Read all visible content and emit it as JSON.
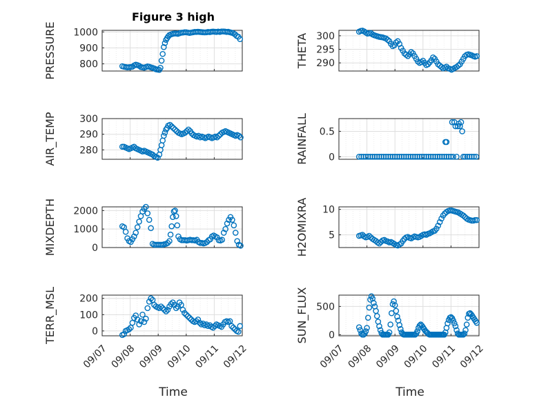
{
  "figure": {
    "title": "Figure 3 high",
    "xlabel": "Time"
  },
  "colors": {
    "marker": "#0072bd",
    "axis": "#262626",
    "grid": "#dedede"
  },
  "chart_data": [
    {
      "type": "scatter",
      "id": "pressure",
      "ylabel": "PRESSURE",
      "xlim": [
        0,
        5
      ],
      "ylim": [
        755,
        1010
      ],
      "yticks": [
        800,
        900,
        1000
      ],
      "xticklabels": [
        "09/07",
        "09/08",
        "09/09",
        "09/10",
        "09/11",
        "09/12"
      ],
      "grid": true,
      "x": [
        0.72,
        0.78,
        0.84,
        0.9,
        0.96,
        1.02,
        1.08,
        1.14,
        1.2,
        1.26,
        1.32,
        1.38,
        1.44,
        1.5,
        1.56,
        1.62,
        1.68,
        1.74,
        1.8,
        1.86,
        1.92,
        1.98,
        2.04,
        2.08,
        2.12,
        2.16,
        2.2,
        2.24,
        2.28,
        2.32,
        2.36,
        2.4,
        2.46,
        2.52,
        2.58,
        2.64,
        2.7,
        2.76,
        2.82,
        2.88,
        2.94,
        3.0,
        3.06,
        3.12,
        3.18,
        3.24,
        3.3,
        3.36,
        3.42,
        3.48,
        3.54,
        3.6,
        3.66,
        3.72,
        3.78,
        3.84,
        3.9,
        3.96,
        4.02,
        4.08,
        4.14,
        4.2,
        4.26,
        4.32,
        4.38,
        4.44,
        4.5,
        4.56,
        4.62,
        4.68,
        4.74,
        4.8,
        4.86,
        4.92
      ],
      "y": [
        785,
        782,
        780,
        778,
        779,
        780,
        782,
        790,
        795,
        792,
        788,
        780,
        778,
        776,
        780,
        784,
        782,
        778,
        775,
        771,
        766,
        764,
        762,
        775,
        820,
        862,
        905,
        930,
        950,
        962,
        972,
        980,
        985,
        988,
        990,
        990,
        988,
        992,
        995,
        996,
        998,
        998,
        996,
        994,
        996,
        998,
        1000,
        1000,
        1001,
        1000,
        999,
        998,
        997,
        998,
        1000,
        999,
        1001,
        1002,
        1001,
        1000,
        1002,
        1000,
        1003,
        1003,
        1002,
        1000,
        1001,
        998,
        995,
        992,
        985,
        975,
        970,
        955
      ]
    },
    {
      "type": "scatter",
      "id": "theta",
      "ylabel": "THETA",
      "xlim": [
        0,
        5
      ],
      "ylim": [
        287,
        302
      ],
      "yticks": [
        290,
        295,
        300
      ],
      "xticklabels": [
        "09/07",
        "09/08",
        "09/09",
        "09/10",
        "09/11",
        "09/12"
      ],
      "grid": true,
      "x": [
        0.72,
        0.78,
        0.84,
        0.9,
        0.96,
        1.02,
        1.08,
        1.14,
        1.2,
        1.26,
        1.32,
        1.38,
        1.44,
        1.5,
        1.56,
        1.62,
        1.68,
        1.74,
        1.8,
        1.86,
        1.92,
        1.98,
        2.04,
        2.1,
        2.16,
        2.22,
        2.28,
        2.34,
        2.4,
        2.46,
        2.52,
        2.58,
        2.64,
        2.7,
        2.76,
        2.82,
        2.88,
        2.94,
        3.0,
        3.06,
        3.12,
        3.18,
        3.24,
        3.3,
        3.36,
        3.42,
        3.48,
        3.54,
        3.6,
        3.66,
        3.72,
        3.78,
        3.84,
        3.9,
        3.96,
        4.02,
        4.08,
        4.14,
        4.2,
        4.26,
        4.32,
        4.38,
        4.44,
        4.5,
        4.56,
        4.62,
        4.68,
        4.74,
        4.8,
        4.86,
        4.92
      ],
      "y": [
        301.5,
        301.8,
        301.9,
        301.6,
        301.2,
        300.8,
        300.9,
        301.0,
        300.5,
        300.2,
        300.0,
        299.8,
        299.6,
        299.5,
        299.4,
        299.2,
        299.0,
        298.5,
        298.0,
        297.0,
        296.2,
        296.5,
        297.5,
        298.0,
        297.0,
        295.5,
        294.5,
        293.5,
        293.0,
        292.5,
        293.2,
        294.0,
        293.5,
        292.5,
        291.5,
        290.5,
        290.0,
        290.3,
        290.8,
        290.0,
        289.2,
        289.5,
        290.2,
        291.0,
        292.0,
        291.5,
        290.5,
        289.5,
        289.0,
        288.5,
        288.0,
        288.3,
        288.6,
        288.0,
        287.8,
        287.5,
        287.8,
        288.2,
        288.5,
        289.0,
        289.5,
        290.5,
        291.5,
        292.5,
        293.0,
        293.2,
        293.0,
        292.8,
        292.5,
        292.3,
        292.5
      ]
    },
    {
      "type": "scatter",
      "id": "air_temp",
      "ylabel": "AIR_TEMP",
      "xlim": [
        0,
        5
      ],
      "ylim": [
        274,
        300
      ],
      "yticks": [
        280,
        290,
        300
      ],
      "xticklabels": [
        "09/07",
        "09/08",
        "09/09",
        "09/10",
        "09/11",
        "09/12"
      ],
      "grid": true,
      "x": [
        0.72,
        0.78,
        0.84,
        0.9,
        0.96,
        1.02,
        1.08,
        1.14,
        1.2,
        1.26,
        1.32,
        1.38,
        1.44,
        1.5,
        1.56,
        1.62,
        1.68,
        1.74,
        1.8,
        1.86,
        1.92,
        1.98,
        2.04,
        2.08,
        2.12,
        2.16,
        2.2,
        2.24,
        2.28,
        2.32,
        2.36,
        2.42,
        2.48,
        2.54,
        2.6,
        2.66,
        2.72,
        2.78,
        2.84,
        2.9,
        2.96,
        3.02,
        3.08,
        3.14,
        3.2,
        3.26,
        3.32,
        3.38,
        3.44,
        3.5,
        3.56,
        3.62,
        3.68,
        3.74,
        3.8,
        3.86,
        3.92,
        3.98,
        4.04,
        4.1,
        4.16,
        4.22,
        4.28,
        4.34,
        4.4,
        4.46,
        4.52,
        4.58,
        4.64,
        4.7,
        4.76,
        4.82,
        4.88,
        4.94
      ],
      "y": [
        282,
        282,
        281.5,
        281,
        280.5,
        281,
        281.5,
        282,
        281,
        280.5,
        280,
        279.5,
        279,
        279.5,
        279,
        278.5,
        278,
        277.5,
        277,
        276,
        275.5,
        275,
        277,
        280,
        283,
        286,
        289,
        291,
        293,
        294,
        295.5,
        296,
        295,
        294,
        293,
        292,
        291,
        290.5,
        290,
        290.5,
        291,
        292,
        293,
        292,
        290.5,
        289.5,
        289,
        288.5,
        289,
        288,
        288.5,
        288,
        287.5,
        288,
        288.5,
        288,
        287.5,
        288,
        288.5,
        288,
        289,
        290,
        291,
        291.5,
        292,
        291.5,
        291,
        290.5,
        290,
        289.5,
        289,
        289.5,
        289,
        288
      ]
    },
    {
      "type": "scatter",
      "id": "rainfall",
      "ylabel": "RAINFALL",
      "xlim": [
        0,
        5
      ],
      "ylim": [
        -0.05,
        0.75
      ],
      "yticks": [
        0,
        0.5
      ],
      "xticklabels": [
        "09/07",
        "09/08",
        "09/09",
        "09/10",
        "09/11",
        "09/12"
      ],
      "grid": true,
      "x": [
        0.72,
        0.8,
        0.88,
        0.96,
        1.04,
        1.12,
        1.2,
        1.28,
        1.36,
        1.44,
        1.52,
        1.6,
        1.68,
        1.76,
        1.84,
        1.92,
        2.0,
        2.08,
        2.16,
        2.24,
        2.32,
        2.4,
        2.48,
        2.56,
        2.64,
        2.72,
        2.8,
        2.88,
        2.96,
        3.04,
        3.12,
        3.2,
        3.28,
        3.36,
        3.44,
        3.52,
        3.6,
        3.68,
        3.76,
        3.84,
        3.92,
        4.0,
        4.04,
        4.08,
        4.12,
        4.16,
        4.2,
        4.24,
        4.28,
        4.32,
        4.36,
        4.4,
        4.44,
        4.5,
        4.58,
        4.66,
        4.74,
        4.82,
        4.9,
        3.8,
        3.84
      ],
      "y": [
        0,
        0,
        0,
        0,
        0,
        0,
        0,
        0,
        0,
        0,
        0,
        0,
        0,
        0,
        0,
        0,
        0,
        0,
        0,
        0,
        0,
        0,
        0,
        0,
        0,
        0,
        0,
        0,
        0,
        0,
        0,
        0,
        0,
        0,
        0,
        0,
        0,
        0,
        0,
        0,
        0,
        0,
        0.68,
        0,
        0.68,
        0.6,
        0,
        0.6,
        0.65,
        0.6,
        0.68,
        0.5,
        0,
        0,
        0,
        0,
        0,
        0,
        0,
        0.29,
        0.29
      ]
    },
    {
      "type": "scatter",
      "id": "mixdepth",
      "ylabel": "MIXDEPTH",
      "xlim": [
        0,
        5
      ],
      "ylim": [
        0,
        2200
      ],
      "yticks": [
        0,
        1000,
        2000
      ],
      "xticklabels": [
        "09/07",
        "09/08",
        "09/09",
        "09/10",
        "09/11",
        "09/12"
      ],
      "grid": true,
      "x": [
        0.72,
        0.78,
        0.84,
        0.9,
        0.96,
        1.02,
        1.08,
        1.14,
        1.2,
        1.26,
        1.32,
        1.38,
        1.44,
        1.5,
        1.56,
        1.62,
        1.68,
        1.74,
        1.8,
        1.86,
        1.92,
        1.98,
        2.04,
        2.1,
        2.16,
        2.22,
        2.28,
        2.34,
        2.4,
        2.44,
        2.48,
        2.52,
        2.56,
        2.6,
        2.64,
        2.68,
        2.72,
        2.78,
        2.84,
        2.9,
        2.96,
        3.02,
        3.08,
        3.14,
        3.2,
        3.26,
        3.32,
        3.38,
        3.44,
        3.5,
        3.56,
        3.62,
        3.68,
        3.74,
        3.8,
        3.86,
        3.92,
        3.98,
        4.04,
        4.1,
        4.16,
        4.22,
        4.28,
        4.34,
        4.4,
        4.46,
        4.52,
        4.58,
        4.64,
        4.7,
        4.76,
        4.82,
        4.88,
        4.94
      ],
      "y": [
        1150,
        1100,
        850,
        500,
        350,
        300,
        450,
        600,
        800,
        1100,
        1400,
        1700,
        1950,
        2100,
        2200,
        1850,
        1500,
        1050,
        200,
        150,
        150,
        150,
        150,
        150,
        150,
        180,
        200,
        250,
        350,
        700,
        1150,
        1650,
        1950,
        2000,
        1700,
        1200,
        600,
        450,
        400,
        400,
        400,
        380,
        400,
        420,
        400,
        400,
        380,
        420,
        300,
        250,
        250,
        220,
        250,
        300,
        400,
        450,
        600,
        650,
        600,
        550,
        400,
        380,
        420,
        800,
        1000,
        1300,
        1500,
        1650,
        1500,
        1200,
        800,
        350,
        150,
        100
      ]
    },
    {
      "type": "scatter",
      "id": "h2omixra",
      "ylabel": "H2OMIXRA",
      "xlim": [
        0,
        5
      ],
      "ylim": [
        2.5,
        10.5
      ],
      "yticks": [
        5,
        10
      ],
      "xticklabels": [
        "09/07",
        "09/08",
        "09/09",
        "09/10",
        "09/11",
        "09/12"
      ],
      "grid": true,
      "x": [
        0.72,
        0.78,
        0.84,
        0.9,
        0.96,
        1.02,
        1.08,
        1.14,
        1.2,
        1.26,
        1.32,
        1.38,
        1.44,
        1.5,
        1.56,
        1.62,
        1.68,
        1.74,
        1.8,
        1.86,
        1.92,
        1.98,
        2.04,
        2.1,
        2.16,
        2.22,
        2.28,
        2.34,
        2.4,
        2.46,
        2.52,
        2.58,
        2.64,
        2.7,
        2.76,
        2.82,
        2.88,
        2.94,
        3.0,
        3.06,
        3.12,
        3.18,
        3.24,
        3.3,
        3.36,
        3.42,
        3.48,
        3.54,
        3.6,
        3.66,
        3.72,
        3.78,
        3.84,
        3.9,
        3.96,
        4.02,
        4.08,
        4.14,
        4.2,
        4.26,
        4.32,
        4.38,
        4.44,
        4.5,
        4.56,
        4.62,
        4.68,
        4.74,
        4.8,
        4.86,
        4.92
      ],
      "y": [
        4.8,
        4.9,
        5.0,
        4.7,
        4.5,
        4.6,
        4.8,
        4.5,
        4.2,
        4.0,
        3.8,
        3.5,
        3.3,
        3.6,
        3.9,
        4.0,
        3.8,
        3.7,
        3.5,
        3.6,
        3.4,
        3.2,
        3.0,
        2.9,
        3.1,
        3.3,
        3.8,
        4.2,
        4.5,
        4.6,
        4.4,
        4.3,
        4.5,
        4.7,
        4.6,
        4.5,
        4.6,
        4.8,
        5.0,
        5.1,
        5.0,
        5.2,
        5.3,
        5.5,
        5.7,
        5.8,
        6.2,
        6.8,
        7.5,
        8.2,
        8.8,
        9.2,
        9.5,
        9.7,
        9.8,
        9.8,
        9.7,
        9.6,
        9.5,
        9.4,
        9.2,
        9.0,
        8.8,
        8.5,
        8.2,
        8.0,
        7.9,
        7.8,
        7.8,
        7.9,
        7.9
      ]
    },
    {
      "type": "scatter",
      "id": "terr_msl",
      "ylabel": "TERR_MSL",
      "xlim": [
        0,
        5
      ],
      "ylim": [
        -30,
        220
      ],
      "yticks": [
        0,
        100,
        200
      ],
      "xticklabels": [
        "09/07",
        "09/08",
        "09/09",
        "09/10",
        "09/11",
        "09/12"
      ],
      "grid": true,
      "x": [
        0.72,
        0.78,
        0.84,
        0.9,
        0.96,
        1.02,
        1.08,
        1.14,
        1.2,
        1.26,
        1.32,
        1.38,
        1.44,
        1.5,
        1.56,
        1.62,
        1.68,
        1.74,
        1.8,
        1.86,
        1.92,
        1.98,
        2.04,
        2.1,
        2.16,
        2.22,
        2.28,
        2.34,
        2.4,
        2.46,
        2.52,
        2.58,
        2.64,
        2.7,
        2.76,
        2.82,
        2.88,
        2.94,
        3.0,
        3.06,
        3.12,
        3.18,
        3.24,
        3.3,
        3.36,
        3.42,
        3.48,
        3.54,
        3.6,
        3.66,
        3.72,
        3.78,
        3.84,
        3.9,
        3.96,
        4.02,
        4.08,
        4.14,
        4.2,
        4.26,
        4.32,
        4.38,
        4.44,
        4.5,
        4.56,
        4.62,
        4.68,
        4.74,
        4.8,
        4.86,
        4.92
      ],
      "y": [
        -25,
        -20,
        0,
        5,
        10,
        20,
        50,
        80,
        95,
        70,
        40,
        60,
        100,
        55,
        75,
        140,
        180,
        200,
        190,
        160,
        150,
        145,
        140,
        150,
        140,
        130,
        120,
        130,
        150,
        165,
        175,
        160,
        140,
        150,
        175,
        160,
        130,
        110,
        100,
        90,
        80,
        70,
        60,
        55,
        60,
        70,
        50,
        40,
        45,
        35,
        40,
        30,
        35,
        25,
        20,
        30,
        40,
        35,
        30,
        25,
        40,
        55,
        60,
        55,
        60,
        30,
        20,
        10,
        0,
        -5,
        30
      ]
    },
    {
      "type": "scatter",
      "id": "sun_flux",
      "ylabel": "SUN_FLUX",
      "xlim": [
        0,
        5
      ],
      "ylim": [
        -20,
        700
      ],
      "yticks": [
        0,
        500
      ],
      "xticklabels": [
        "09/07",
        "09/08",
        "09/09",
        "09/10",
        "09/11",
        "09/12"
      ],
      "grid": true,
      "x": [
        0.72,
        0.76,
        0.8,
        0.84,
        0.88,
        0.92,
        0.96,
        1.0,
        1.04,
        1.08,
        1.12,
        1.16,
        1.2,
        1.24,
        1.28,
        1.32,
        1.36,
        1.4,
        1.44,
        1.48,
        1.52,
        1.56,
        1.6,
        1.64,
        1.68,
        1.72,
        1.76,
        1.8,
        1.84,
        1.88,
        1.92,
        1.96,
        2.0,
        2.04,
        2.08,
        2.12,
        2.16,
        2.2,
        2.24,
        2.28,
        2.32,
        2.36,
        2.4,
        2.44,
        2.48,
        2.52,
        2.56,
        2.6,
        2.64,
        2.68,
        2.72,
        2.76,
        2.8,
        2.84,
        2.88,
        2.92,
        2.96,
        3.0,
        3.04,
        3.08,
        3.12,
        3.16,
        3.2,
        3.24,
        3.28,
        3.32,
        3.36,
        3.4,
        3.44,
        3.48,
        3.52,
        3.56,
        3.6,
        3.64,
        3.68,
        3.72,
        3.76,
        3.8,
        3.84,
        3.88,
        3.92,
        3.96,
        4.0,
        4.04,
        4.08,
        4.12,
        4.16,
        4.2,
        4.24,
        4.28,
        4.32,
        4.36,
        4.4,
        4.44,
        4.48,
        4.52,
        4.56,
        4.6,
        4.64,
        4.68,
        4.72,
        4.76,
        4.8,
        4.84,
        4.88,
        4.92
      ],
      "y": [
        130,
        80,
        20,
        0,
        0,
        20,
        60,
        120,
        300,
        480,
        620,
        680,
        640,
        560,
        500,
        420,
        330,
        230,
        150,
        80,
        30,
        0,
        0,
        0,
        0,
        0,
        0,
        40,
        180,
        380,
        540,
        590,
        520,
        420,
        320,
        250,
        170,
        100,
        40,
        10,
        0,
        0,
        0,
        0,
        0,
        0,
        0,
        0,
        0,
        0,
        0,
        20,
        60,
        120,
        160,
        180,
        160,
        130,
        100,
        70,
        50,
        30,
        10,
        0,
        0,
        0,
        0,
        0,
        0,
        0,
        0,
        0,
        0,
        0,
        0,
        0,
        0,
        40,
        120,
        200,
        260,
        300,
        310,
        290,
        250,
        200,
        150,
        80,
        20,
        0,
        0,
        0,
        0,
        0,
        20,
        80,
        180,
        300,
        370,
        380,
        360,
        330,
        300,
        270,
        240,
        210
      ]
    }
  ]
}
